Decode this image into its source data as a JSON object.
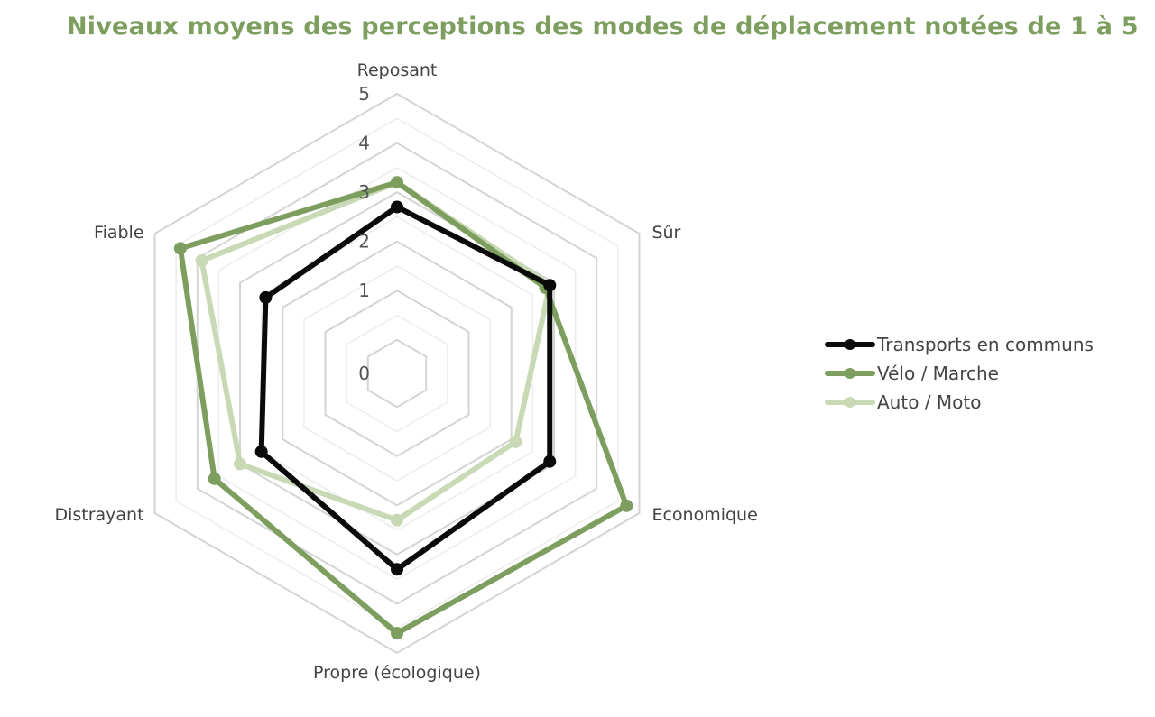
{
  "title": "Niveaux moyens des perceptions des modes de déplacement notées de 1 à 5",
  "chart_data": {
    "type": "radar",
    "title": "Niveaux moyens des perceptions des modes de déplacement notées de 1 à 5",
    "categories": [
      "Reposant",
      "Sûr",
      "Economique",
      "Propre (écologique)",
      "Distrayant",
      "Fiable"
    ],
    "rlim": [
      0,
      5
    ],
    "ticks": [
      "0",
      "1",
      "2",
      "3",
      "4",
      "5"
    ],
    "grid": true,
    "legend_position": "right",
    "series": [
      {
        "name": "Transports en communs",
        "color": "#0a0a0a",
        "values": [
          2.7,
          2.9,
          2.9,
          3.3,
          2.5,
          2.4
        ]
      },
      {
        "name": "Vélo / Marche",
        "color": "#7d9e5e",
        "values": [
          3.2,
          2.8,
          4.7,
          4.6,
          3.6,
          4.4
        ]
      },
      {
        "name": "Auto / Moto",
        "color": "#c9d9b5",
        "values": [
          3.2,
          2.9,
          2.1,
          2.3,
          3.0,
          3.9
        ]
      }
    ]
  }
}
